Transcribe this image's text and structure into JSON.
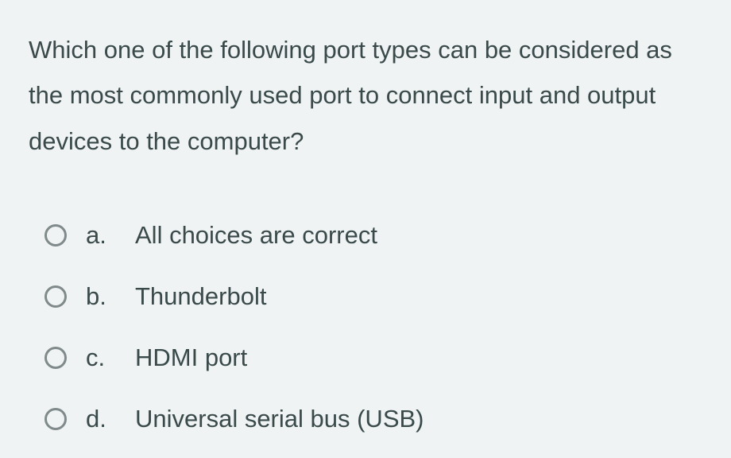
{
  "question": {
    "text": "Which one of the following port types can be considered as the most commonly used port to connect input and output devices to the computer?"
  },
  "options": [
    {
      "letter": "a.",
      "text": "All choices are correct",
      "selected": false
    },
    {
      "letter": "b.",
      "text": "Thunderbolt",
      "selected": false
    },
    {
      "letter": "c.",
      "text": "HDMI port",
      "selected": false
    },
    {
      "letter": "d.",
      "text": "Universal serial bus (USB)",
      "selected": false
    }
  ],
  "colors": {
    "background": "#f0f3f3",
    "text": "#3a4a4a",
    "radio_border": "#808a8a"
  }
}
